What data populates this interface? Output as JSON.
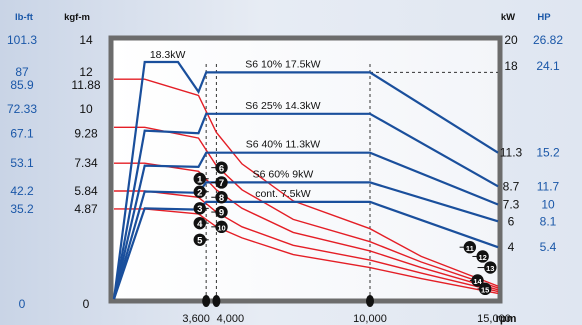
{
  "chart_data": {
    "type": "line",
    "xlabel": "rpm",
    "x_ticks": [
      {
        "value": 3600,
        "label": "3,600"
      },
      {
        "value": 4000,
        "label": "4,000"
      },
      {
        "value": 10000,
        "label": "10,000"
      },
      {
        "value": 15000,
        "label": "15,000"
      }
    ],
    "xlim": [
      0,
      15000
    ],
    "ylim_kgfm": [
      0,
      14
    ],
    "left_axes": {
      "lbft_header": "lb-ft",
      "kgfm_header": "kgf-m",
      "ticks": [
        {
          "kgfm": 14,
          "lbft": "101.3",
          "kgfm_label": "14"
        },
        {
          "kgfm": 12,
          "lbft": "87",
          "kgfm_label": "12"
        },
        {
          "kgfm": 11.88,
          "lbft": "85.9",
          "kgfm_label": "11.88"
        },
        {
          "kgfm": 10,
          "lbft": "72.33",
          "kgfm_label": "10"
        },
        {
          "kgfm": 9.28,
          "lbft": "67.1",
          "kgfm_label": "9.28"
        },
        {
          "kgfm": 7.34,
          "lbft": "53.1",
          "kgfm_label": "7.34"
        },
        {
          "kgfm": 5.84,
          "lbft": "42.2",
          "kgfm_label": "5.84"
        },
        {
          "kgfm": 4.87,
          "lbft": "35.2",
          "kgfm_label": "4.87"
        },
        {
          "kgfm": 0,
          "lbft": "0",
          "kgfm_label": "0"
        }
      ]
    },
    "right_axes": {
      "kw_header": "kW",
      "hp_header": "HP",
      "ticks": [
        {
          "kw": 20,
          "kw_label": "20",
          "hp_label": "26.82"
        },
        {
          "kw": 18,
          "kw_label": "18",
          "hp_label": "24.1"
        },
        {
          "kw": 11.3,
          "kw_label": "11.3",
          "hp_label": "15.2"
        },
        {
          "kw": 8.7,
          "kw_label": "8.7",
          "hp_label": "11.7"
        },
        {
          "kw": 7.3,
          "kw_label": "7.3",
          "hp_label": "10"
        },
        {
          "kw": 6,
          "kw_label": "6",
          "hp_label": "8.1"
        },
        {
          "kw": 4,
          "kw_label": "4",
          "hp_label": "5.4"
        }
      ]
    },
    "power_series": [
      {
        "name": "S6 10% 17.5kW",
        "points": [
          [
            0,
            0
          ],
          [
            1200,
            18.3
          ],
          [
            2500,
            18.3
          ],
          [
            3300,
            16.0
          ],
          [
            3600,
            17.5
          ],
          [
            10000,
            17.5
          ],
          [
            15000,
            11.3
          ]
        ]
      },
      {
        "name": "S6 25% 14.3kW",
        "points": [
          [
            0,
            0
          ],
          [
            1200,
            13.0
          ],
          [
            3300,
            12.8
          ],
          [
            3600,
            14.3
          ],
          [
            10000,
            14.3
          ],
          [
            15000,
            8.7
          ]
        ]
      },
      {
        "name": "S6 40% 11.3kW",
        "points": [
          [
            0,
            0
          ],
          [
            1200,
            10.3
          ],
          [
            3300,
            10.2
          ],
          [
            3600,
            11.3
          ],
          [
            10000,
            11.3
          ],
          [
            15000,
            7.3
          ]
        ]
      },
      {
        "name": "S6 60% 9kW",
        "points": [
          [
            0,
            0
          ],
          [
            1200,
            8.3
          ],
          [
            3300,
            8.2
          ],
          [
            3600,
            9.0
          ],
          [
            10000,
            9.0
          ],
          [
            15000,
            6.0
          ]
        ]
      },
      {
        "name": "cont. 7.5kW",
        "points": [
          [
            0,
            0
          ],
          [
            1200,
            7.0
          ],
          [
            3300,
            6.9
          ],
          [
            3600,
            7.5
          ],
          [
            10000,
            7.5
          ],
          [
            15000,
            4.0
          ]
        ]
      }
    ],
    "annotations": [
      {
        "text": "18.3kW",
        "x": 1400,
        "y": 18.6
      }
    ],
    "torque_series": [
      {
        "name": "torque-1",
        "points": [
          [
            0,
            11.88
          ],
          [
            1200,
            11.88
          ],
          [
            3300,
            11.0
          ],
          [
            4000,
            9.0
          ],
          [
            5000,
            7.3
          ],
          [
            7000,
            5.3
          ],
          [
            10000,
            3.8
          ],
          [
            12000,
            2.3
          ],
          [
            15000,
            0.7
          ]
        ]
      },
      {
        "name": "torque-2",
        "points": [
          [
            0,
            9.28
          ],
          [
            1200,
            9.28
          ],
          [
            3300,
            8.7
          ],
          [
            4000,
            7.2
          ],
          [
            5000,
            5.9
          ],
          [
            7000,
            4.3
          ],
          [
            10000,
            3.1
          ],
          [
            12000,
            2.0
          ],
          [
            15000,
            0.6
          ]
        ]
      },
      {
        "name": "torque-3",
        "points": [
          [
            0,
            7.34
          ],
          [
            1200,
            7.34
          ],
          [
            3300,
            6.9
          ],
          [
            4000,
            5.9
          ],
          [
            5000,
            4.9
          ],
          [
            7000,
            3.6
          ],
          [
            10000,
            2.6
          ],
          [
            12000,
            1.7
          ],
          [
            15000,
            0.5
          ]
        ]
      },
      {
        "name": "torque-4",
        "points": [
          [
            0,
            5.84
          ],
          [
            1200,
            5.84
          ],
          [
            3300,
            5.5
          ],
          [
            4000,
            4.7
          ],
          [
            5000,
            3.9
          ],
          [
            7000,
            2.9
          ],
          [
            10000,
            2.1
          ],
          [
            12000,
            1.4
          ],
          [
            15000,
            0.4
          ]
        ]
      },
      {
        "name": "torque-5",
        "points": [
          [
            0,
            4.87
          ],
          [
            1200,
            4.87
          ],
          [
            3300,
            4.6
          ],
          [
            4000,
            3.9
          ],
          [
            5000,
            3.3
          ],
          [
            7000,
            2.4
          ],
          [
            10000,
            1.7
          ],
          [
            12000,
            1.1
          ],
          [
            15000,
            0.3
          ]
        ]
      }
    ],
    "curve_markers": [
      {
        "label": "1",
        "x": 3350,
        "y": 6.5,
        "hx": 3700,
        "hy": 6.5
      },
      {
        "label": "2",
        "x": 3350,
        "y": 5.8,
        "hx": 3700,
        "hy": 5.8
      },
      {
        "label": "3",
        "x": 3350,
        "y": 4.9,
        "hx": 3700,
        "hy": 4.9
      },
      {
        "label": "4",
        "x": 3350,
        "y": 4.1,
        "hx": 3700,
        "hy": 4.1
      },
      {
        "label": "5",
        "x": 3350,
        "y": 3.2,
        "hx": 3700,
        "hy": 3.2
      },
      {
        "label": "6",
        "x": 4200,
        "y": 7.1,
        "hx": 3800,
        "hy": 7.1
      },
      {
        "label": "7",
        "x": 4200,
        "y": 6.3,
        "hx": 3800,
        "hy": 6.3
      },
      {
        "label": "8",
        "x": 4200,
        "y": 5.5,
        "hx": 3800,
        "hy": 5.5
      },
      {
        "label": "9",
        "x": 4200,
        "y": 4.7,
        "hx": 3800,
        "hy": 4.7
      },
      {
        "label": "10",
        "x": 4200,
        "y": 3.9,
        "hx": 3800,
        "hy": 3.9
      },
      {
        "label": "11",
        "x": 13900,
        "y": 2.8,
        "hx": 13500,
        "hy": 2.8
      },
      {
        "label": "12",
        "x": 14400,
        "y": 2.3,
        "hx": 14000,
        "hy": 2.3
      },
      {
        "label": "13",
        "x": 14700,
        "y": 1.7,
        "hx": 14200,
        "hy": 1.7
      },
      {
        "label": "14",
        "x": 14200,
        "y": 1.0,
        "hx": 13900,
        "hy": 1.0
      },
      {
        "label": "15",
        "x": 14500,
        "y": 0.55,
        "hx": 14200,
        "hy": 0.55
      }
    ],
    "guide_lines_rpm": [
      3600,
      4000,
      10000
    ],
    "colors": {
      "power": "#1a4f9c",
      "torque": "#e41e26",
      "lbft_labels": "#1a57a8",
      "hp_labels": "#1a57a8",
      "kw_labels": "#111111",
      "kgfm_labels": "#111111",
      "plot_border": "#6c6c6c",
      "plot_bg": "#ffffff"
    }
  }
}
